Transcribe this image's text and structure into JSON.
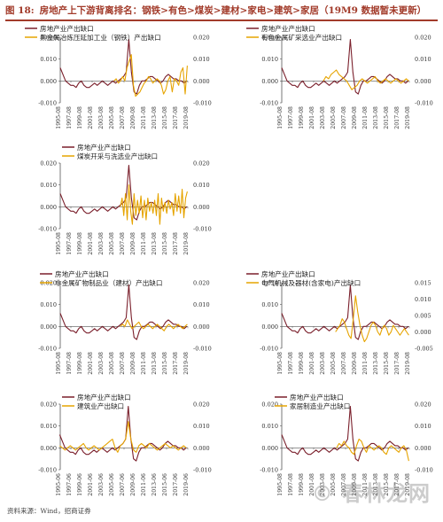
{
  "figure": {
    "label": "图 18:",
    "title": "房地产上下游背离排名：钢铁>有色>煤炭>建材>家电>建筑>家居（19M9 数据暂未更新）",
    "source": "资料来源：Wind，招商证券",
    "watermark": "© 春林龙网"
  },
  "colors": {
    "realestate": "#7a1f2b",
    "industry": "#e6a400",
    "axis": "#555555",
    "header": "#a23b2a"
  },
  "chart_data": [
    {
      "type": "line",
      "panel": "steel",
      "legend": [
        "房地产业产出缺口",
        "黑金属冶炼压延加工业（钢铁）产出缺口"
      ],
      "x_ticks": [
        "1995-08",
        "1997-08",
        "1999-08",
        "2001-08",
        "2003-08",
        "2005-08",
        "2007-08",
        "2009-08",
        "2011-08",
        "2013-08",
        "2015-08",
        "2017-08",
        "2019-08"
      ],
      "left_ticks": [
        "0.020",
        "0.010",
        "0.000",
        "-0.010"
      ],
      "right_ticks": [
        "0.020",
        "0.010",
        "0.000",
        "-0.010"
      ],
      "series": [
        {
          "name": "房地产业产出缺口",
          "axis": "left",
          "range": [
            1995.6,
            2019.6
          ],
          "values": [
            0.006,
            0.003,
            0.0,
            -0.001,
            -0.002,
            -0.002,
            -0.003,
            -0.001,
            0.0,
            -0.002,
            -0.003,
            -0.003,
            -0.002,
            -0.001,
            -0.002,
            -0.001,
            0.0,
            -0.001,
            -0.002,
            -0.001,
            0.0,
            -0.001,
            0.0,
            0.001,
            0.002,
            0.004,
            0.019,
            0.004,
            -0.005,
            -0.006,
            -0.002,
            0.0,
            0.0,
            0.001,
            0.002,
            0.002,
            0.001,
            0.0,
            -0.001,
            0.0,
            0.002,
            0.003,
            0.002,
            0.001,
            0.001,
            0.0,
            0.0,
            -0.001,
            0.0
          ]
        },
        {
          "name": "黑金属冶炼压延加工业（钢铁）产出缺口",
          "axis": "right",
          "range": [
            2005.8,
            2019.7
          ],
          "values": [
            0.0,
            0.001,
            -0.001,
            0.0,
            0.002,
            0.0,
            0.006,
            0.009,
            0.012,
            -0.002,
            -0.007,
            -0.006,
            -0.005,
            -0.003,
            -0.001,
            0.0,
            0.002,
            0.001,
            -0.001,
            0.0,
            0.001,
            0.0,
            -0.002,
            -0.006,
            -0.004,
            0.0,
            0.002,
            -0.005,
            0.001,
            0.0,
            -0.002,
            0.004,
            0.006,
            -0.006,
            0.007
          ]
        }
      ]
    },
    {
      "type": "line",
      "panel": "nonferrous",
      "legend": [
        "房地产业产出缺口",
        "有色金属矿采选业产出缺口"
      ],
      "x_ticks": [
        "1995-08",
        "1997-08",
        "1999-08",
        "2001-08",
        "2003-08",
        "2005-08",
        "2007-08",
        "2009-08",
        "2011-08",
        "2013-08",
        "2015-08",
        "2017-08",
        "2019-08"
      ],
      "left_ticks": [
        "0.020",
        "0.010",
        "0.000",
        "-0.010"
      ],
      "right_ticks": [
        "0.020",
        "0.010",
        "0.000",
        "-0.010"
      ],
      "series": [
        {
          "name": "房地产业产出缺口",
          "axis": "left",
          "range": [
            1995.6,
            2019.6
          ],
          "values": [
            0.006,
            0.003,
            0.0,
            -0.001,
            -0.002,
            -0.002,
            -0.003,
            -0.001,
            0.0,
            -0.002,
            -0.003,
            -0.003,
            -0.002,
            -0.001,
            -0.002,
            -0.001,
            0.0,
            -0.001,
            -0.002,
            -0.001,
            0.0,
            -0.001,
            0.0,
            0.001,
            0.002,
            0.004,
            0.019,
            0.004,
            -0.005,
            -0.006,
            -0.002,
            0.0,
            0.0,
            0.001,
            0.002,
            0.002,
            0.001,
            0.0,
            -0.001,
            0.0,
            0.002,
            0.003,
            0.002,
            0.001,
            0.001,
            0.0,
            0.0,
            -0.001,
            0.0
          ]
        },
        {
          "name": "有色金属矿采选业产出缺口",
          "axis": "right",
          "range": [
            2003.5,
            2019.7
          ],
          "values": [
            0.0,
            0.002,
            0.001,
            0.003,
            0.004,
            0.005,
            0.003,
            0.002,
            0.001,
            0.0,
            -0.002,
            -0.004,
            -0.003,
            -0.002,
            0.0,
            0.001,
            0.0,
            -0.001,
            0.0,
            0.001,
            0.002,
            0.0,
            -0.001,
            0.0,
            0.001,
            0.0,
            -0.001,
            0.0,
            0.001,
            0.0,
            -0.001,
            0.0,
            0.001,
            0.0
          ]
        }
      ]
    },
    {
      "type": "line",
      "panel": "coal",
      "legend": [
        "房地产业产出缺口",
        "煤炭开采与洗选业产出缺口"
      ],
      "x_ticks": [
        "1995-08",
        "1997-08",
        "1999-08",
        "2001-08",
        "2003-08",
        "2005-08",
        "2007-08",
        "2009-08",
        "2011-08",
        "2013-08",
        "2015-08",
        "2017-08",
        "2019-08"
      ],
      "left_ticks": [
        "0.020",
        "0.010",
        "0.000",
        "-0.010"
      ],
      "right_ticks": [
        "0.020",
        "0.010",
        "0.000",
        "-0.010"
      ],
      "series": [
        {
          "name": "房地产业产出缺口",
          "axis": "left",
          "range": [
            1995.6,
            2019.6
          ],
          "values": [
            0.006,
            0.003,
            0.0,
            -0.001,
            -0.002,
            -0.002,
            -0.003,
            -0.001,
            0.0,
            -0.002,
            -0.003,
            -0.003,
            -0.002,
            -0.001,
            -0.002,
            -0.001,
            0.0,
            -0.001,
            -0.002,
            -0.001,
            0.0,
            -0.001,
            0.0,
            0.001,
            0.002,
            0.004,
            0.019,
            0.004,
            -0.005,
            -0.006,
            -0.002,
            0.0,
            0.0,
            0.001,
            0.002,
            0.002,
            0.001,
            0.0,
            -0.001,
            0.0,
            0.002,
            0.003,
            0.002,
            0.001,
            0.001,
            0.0,
            0.0,
            -0.001,
            0.0
          ]
        },
        {
          "name": "煤炭开采与洗选业产出缺口",
          "axis": "right",
          "range": [
            2007.0,
            2019.7
          ],
          "values": [
            0.0,
            0.004,
            -0.004,
            0.006,
            -0.006,
            0.01,
            -0.002,
            -0.008,
            0.006,
            -0.004,
            0.003,
            -0.003,
            0.005,
            -0.005,
            0.003,
            -0.006,
            0.004,
            -0.002,
            0.002,
            -0.003,
            0.003,
            -0.004,
            0.006,
            -0.008,
            0.004,
            -0.002,
            0.002,
            -0.003,
            0.003,
            -0.001,
            0.002,
            -0.004,
            0.006,
            -0.002,
            0.005,
            -0.003,
            0.008,
            -0.005,
            0.004,
            0.007
          ]
        }
      ]
    },
    {
      "type": "line",
      "panel": "building-materials",
      "legend": [
        "房地产业产出缺口",
        "非金属矿物制品业（建材）产出缺口"
      ],
      "x_ticks": [
        "1995-08",
        "1997-08",
        "1999-08",
        "2001-08",
        "2003-08",
        "2005-08",
        "2007-08",
        "2009-08",
        "2011-08",
        "2013-08",
        "2015-08",
        "2017-08",
        "2019-08"
      ],
      "left_ticks": [
        "0.020",
        "0.010",
        "0.000",
        "-0.010"
      ],
      "right_ticks": [
        "0.020",
        "0.010",
        "0.000",
        "-0.010"
      ],
      "series": [
        {
          "name": "房地产业产出缺口",
          "axis": "left",
          "range": [
            1995.6,
            2019.6
          ],
          "values": [
            0.006,
            0.003,
            0.0,
            -0.001,
            -0.002,
            -0.002,
            -0.003,
            -0.001,
            0.0,
            -0.002,
            -0.003,
            -0.003,
            -0.002,
            -0.001,
            -0.002,
            -0.001,
            0.0,
            -0.001,
            -0.002,
            -0.001,
            0.0,
            -0.001,
            0.0,
            0.001,
            0.002,
            0.004,
            0.019,
            0.004,
            -0.005,
            -0.006,
            -0.002,
            0.0,
            0.0,
            0.001,
            0.002,
            0.002,
            0.001,
            0.0,
            -0.001,
            0.0,
            0.002,
            0.003,
            0.002,
            0.001,
            0.001,
            0.0,
            0.0,
            -0.001,
            0.0
          ]
        },
        {
          "name": "非金属矿物制品业（建材）产出缺口",
          "axis": "right",
          "range": [
            2007.0,
            2019.7
          ],
          "values": [
            0.0,
            0.001,
            0.0,
            0.003,
            0.001,
            -0.001,
            0.0,
            0.001,
            0.002,
            0.0,
            -0.001,
            0.0,
            0.001,
            0.0,
            -0.001,
            0.0,
            0.001,
            0.0,
            -0.001,
            -0.002,
            0.0,
            0.001,
            0.0,
            -0.001,
            0.0,
            0.001,
            0.0,
            -0.001,
            0.0,
            0.001
          ]
        }
      ]
    },
    {
      "type": "line",
      "panel": "appliances",
      "legend": [
        "房地产业产出缺口",
        "电气机械及器材(含家电)产出缺口"
      ],
      "x_ticks": [
        "1995-08",
        "1997-08",
        "1999-08",
        "2001-08",
        "2003-08",
        "2005-08",
        "2007-08",
        "2009-08",
        "2011-08",
        "2013-08",
        "2015-08",
        "2017-08",
        "2019-08"
      ],
      "left_ticks": [
        "0.020",
        "0.010",
        "0.000",
        "-0.010"
      ],
      "right_ticks": [
        "0.015",
        "0.010",
        "0.005",
        "0.000",
        "-0.005"
      ],
      "series": [
        {
          "name": "房地产业产出缺口",
          "axis": "left",
          "range": [
            1995.6,
            2019.6
          ],
          "values": [
            0.006,
            0.003,
            0.0,
            -0.001,
            -0.002,
            -0.002,
            -0.003,
            -0.001,
            0.0,
            -0.002,
            -0.003,
            -0.003,
            -0.002,
            -0.001,
            -0.002,
            -0.001,
            0.0,
            -0.001,
            -0.002,
            -0.001,
            0.0,
            -0.001,
            0.0,
            0.001,
            0.002,
            0.004,
            0.019,
            0.004,
            -0.005,
            -0.006,
            -0.002,
            0.0,
            0.0,
            0.001,
            0.002,
            0.002,
            0.001,
            0.0,
            -0.001,
            0.0,
            0.002,
            0.003,
            0.002,
            0.001,
            0.001,
            0.0,
            0.0,
            -0.001,
            0.0
          ]
        },
        {
          "name": "电气机械及器材(含家电)产出缺口",
          "axis": "right",
          "range": [
            2005.8,
            2019.7
          ],
          "values": [
            0.0,
            0.001,
            0.002,
            0.004,
            0.003,
            0.001,
            -0.001,
            -0.002,
            0.004,
            0.011,
            0.006,
            0.002,
            -0.001,
            -0.003,
            -0.002,
            0.0,
            0.002,
            0.003,
            0.002,
            0.0,
            -0.001,
            0.001,
            0.002,
            0.001,
            -0.001,
            0.0,
            0.002,
            0.001,
            0.0,
            -0.001,
            0.0,
            0.001,
            0.0,
            -0.001
          ]
        }
      ]
    },
    {
      "type": "line",
      "panel": "construction",
      "legend": [
        "房地产业产出缺口",
        "建筑业产出缺口"
      ],
      "x_ticks": [
        "1995-06",
        "1997-06",
        "1999-06",
        "2001-06",
        "2003-06",
        "2005-06",
        "2007-06",
        "2009-06",
        "2011-06",
        "2013-06",
        "2015-06",
        "2017-06",
        "2019-06"
      ],
      "left_ticks": [
        "0.020",
        "0.010",
        "0.000",
        "-0.010"
      ],
      "right_ticks": [
        "0.020",
        "0.010",
        "0.000",
        "-0.010"
      ],
      "series": [
        {
          "name": "房地产业产出缺口",
          "axis": "left",
          "range": [
            1995.5,
            2019.5
          ],
          "values": [
            0.006,
            0.003,
            0.0,
            -0.001,
            -0.002,
            -0.002,
            -0.003,
            -0.001,
            0.0,
            -0.002,
            -0.003,
            -0.003,
            -0.002,
            -0.001,
            -0.002,
            -0.001,
            0.0,
            -0.001,
            -0.002,
            -0.001,
            0.0,
            -0.001,
            0.0,
            0.001,
            0.002,
            0.004,
            0.019,
            0.004,
            -0.005,
            -0.006,
            -0.002,
            0.0,
            0.0,
            0.001,
            0.002,
            0.002,
            0.001,
            0.0,
            -0.001,
            0.0,
            0.002,
            0.003,
            0.002,
            0.001,
            0.001,
            0.0,
            0.0,
            -0.001,
            0.0
          ]
        },
        {
          "name": "建筑业产出缺口",
          "axis": "right",
          "range": [
            1995.5,
            2019.5
          ],
          "values": [
            0.001,
            0.0,
            -0.001,
            0.0,
            0.001,
            0.0,
            -0.001,
            0.0,
            0.001,
            0.002,
            0.0,
            -0.001,
            0.0,
            0.001,
            0.0,
            -0.001,
            0.0,
            0.001,
            0.002,
            0.003,
            0.004,
            0.0,
            -0.002,
            0.001,
            0.002,
            0.004,
            0.012,
            0.004,
            -0.001,
            -0.002,
            0.001,
            0.002,
            0.001,
            0.0,
            0.002,
            0.001,
            0.0,
            -0.001,
            0.0,
            0.001,
            0.002,
            0.001,
            0.0,
            0.001,
            0.0,
            -0.001,
            0.0,
            0.001,
            0.0
          ]
        }
      ]
    },
    {
      "type": "line",
      "panel": "home-furnishing",
      "legend": [
        "房地产业产出缺口",
        "家居制造业产出缺口"
      ],
      "x_ticks": [
        "1995-08",
        "1997-08",
        "1999-08",
        "2001-08",
        "2003-08",
        "2005-08",
        "2007-08",
        "2009-08",
        "2011-08",
        "2013-08",
        "2015-08",
        "2017-08",
        "2019-08"
      ],
      "left_ticks": [
        "0.020",
        "0.010",
        "0.000",
        "-0.010"
      ],
      "right_ticks": [
        "0.020",
        "0.010",
        "0.000",
        "-0.010"
      ],
      "series": [
        {
          "name": "房地产业产出缺口",
          "axis": "left",
          "range": [
            1995.6,
            2019.6
          ],
          "values": [
            0.006,
            0.003,
            0.0,
            -0.001,
            -0.002,
            -0.002,
            -0.003,
            -0.001,
            0.0,
            -0.002,
            -0.003,
            -0.003,
            -0.002,
            -0.001,
            -0.002,
            -0.001,
            0.0,
            -0.001,
            -0.002,
            -0.001,
            0.0,
            -0.001,
            0.0,
            0.001,
            0.002,
            0.004,
            0.019,
            0.004,
            -0.005,
            -0.006,
            -0.002,
            0.0,
            0.0,
            0.001,
            0.002,
            0.002,
            0.001,
            0.0,
            -0.001,
            0.0,
            0.002,
            0.003,
            0.002,
            0.001,
            0.001,
            0.0,
            0.0,
            -0.001,
            0.0
          ]
        },
        {
          "name": "家居制造业产出缺口",
          "axis": "right",
          "range": [
            2006.0,
            2019.7
          ],
          "values": [
            0.0,
            0.002,
            0.001,
            0.003,
            0.001,
            0.0,
            -0.002,
            -0.003,
            0.001,
            0.004,
            0.003,
            0.0,
            -0.002,
            0.001,
            0.0,
            -0.001,
            0.0,
            0.001,
            0.0,
            -0.002,
            -0.003,
            0.0,
            0.001,
            0.0,
            -0.001,
            -0.002,
            0.0,
            0.001,
            -0.001,
            -0.006
          ]
        }
      ]
    }
  ]
}
